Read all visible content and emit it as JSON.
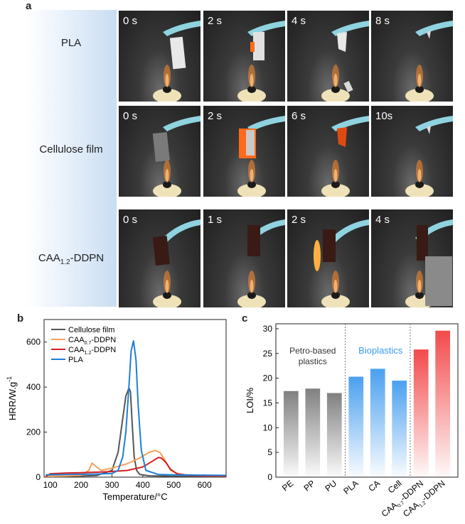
{
  "panel_a": {
    "letter": "a",
    "rows": [
      {
        "label": "PLA",
        "label_main": "PLA",
        "label_sub": "",
        "label_tail": "",
        "times": [
          "0 s",
          "2 s",
          "4 s",
          "8 s"
        ]
      },
      {
        "label": "Cellulose film",
        "label_main": "Cellulose film",
        "label_sub": "",
        "label_tail": "",
        "times": [
          "0 s",
          "2 s",
          "6 s",
          "10s"
        ]
      },
      {
        "label": "CAA1.2-DDPN",
        "label_main": "CAA",
        "label_sub": "1.2",
        "label_tail": "-DDPN",
        "times": [
          "0 s",
          "1 s",
          "2 s",
          "4 s"
        ]
      }
    ]
  },
  "panel_b_letter": "b",
  "panel_c_letter": "c",
  "chart_data": [
    {
      "type": "line",
      "panel": "b",
      "xlabel": "Temperature/°C",
      "ylabel": "HRR/W.g",
      "ylabel_sup": "-1",
      "xlim": [
        80,
        670
      ],
      "ylim": [
        0,
        700
      ],
      "xticks": [
        100,
        200,
        300,
        400,
        500,
        600
      ],
      "yticks": [
        0,
        200,
        400,
        600
      ],
      "legend": [
        {
          "main": "Cellulose film",
          "sub": "",
          "tail": ""
        },
        {
          "main": "CAA",
          "sub": "0.7",
          "tail": "-DDPN"
        },
        {
          "main": "CAA",
          "sub": "1.2",
          "tail": "-DDPN"
        },
        {
          "main": "PLA",
          "sub": "",
          "tail": ""
        }
      ],
      "series": [
        {
          "name": "Cellulose film",
          "color": "#555555",
          "x": [
            85,
            150,
            200,
            250,
            300,
            320,
            335,
            345,
            355,
            360,
            365,
            372,
            380,
            390,
            420,
            500,
            600,
            670
          ],
          "y": [
            3,
            4,
            5,
            7,
            30,
            110,
            260,
            360,
            395,
            380,
            250,
            90,
            30,
            12,
            6,
            4,
            3,
            3
          ]
        },
        {
          "name": "CAA0.7-DDPN",
          "color": "#f5a05a",
          "x": [
            85,
            150,
            200,
            225,
            235,
            242,
            250,
            265,
            300,
            350,
            390,
            420,
            440,
            455,
            470,
            490,
            520,
            600,
            670
          ],
          "y": [
            3,
            5,
            8,
            30,
            62,
            55,
            45,
            30,
            40,
            60,
            85,
            110,
            118,
            110,
            80,
            30,
            12,
            6,
            5
          ]
        },
        {
          "name": "CAA1.2-DDPN",
          "color": "#d42020",
          "x": [
            85,
            100,
            150,
            200,
            250,
            300,
            350,
            400,
            430,
            450,
            460,
            475,
            490,
            510,
            550,
            600,
            670
          ],
          "y": [
            2,
            15,
            18,
            20,
            22,
            25,
            30,
            45,
            70,
            87,
            85,
            65,
            35,
            15,
            8,
            6,
            5
          ]
        },
        {
          "name": "PLA",
          "color": "#1e7fd6",
          "x": [
            85,
            150,
            250,
            300,
            320,
            335,
            345,
            355,
            362,
            370,
            378,
            385,
            395,
            410,
            450,
            500,
            670
          ],
          "y": [
            10,
            12,
            14,
            16,
            30,
            90,
            200,
            400,
            560,
            605,
            520,
            320,
            120,
            30,
            12,
            10,
            8
          ]
        }
      ]
    },
    {
      "type": "bar",
      "panel": "c",
      "ylabel": "LOI/%",
      "ylim": [
        0,
        31
      ],
      "yticks": [
        0,
        5,
        10,
        15,
        20,
        25,
        30
      ],
      "categories": [
        "PE",
        "PP",
        "PU",
        "PLA",
        "CA",
        "Cell",
        "CAA0.7-DDPN",
        "CAA1.2-DDPN"
      ],
      "category_labels": [
        {
          "main": "PE",
          "sub": "",
          "tail": ""
        },
        {
          "main": "PP",
          "sub": "",
          "tail": ""
        },
        {
          "main": "PU",
          "sub": "",
          "tail": ""
        },
        {
          "main": "PLA",
          "sub": "",
          "tail": ""
        },
        {
          "main": "CA",
          "sub": "",
          "tail": ""
        },
        {
          "main": "Cell",
          "sub": "",
          "tail": ""
        },
        {
          "main": "CAA",
          "sub": "0.7",
          "tail": "-DDPN"
        },
        {
          "main": "CAA",
          "sub": "1.2",
          "tail": "-DDPN"
        }
      ],
      "values": [
        17.4,
        17.9,
        17.0,
        20.3,
        21.9,
        19.5,
        25.8,
        29.6
      ],
      "groups": [
        {
          "label_lines": [
            "Petro-based",
            "plastics"
          ],
          "members": [
            0,
            1,
            2
          ],
          "color": "#808080"
        },
        {
          "label_lines": [
            "Bioplastics"
          ],
          "members": [
            3,
            4,
            5
          ],
          "color": "#4aa0ef"
        },
        {
          "label_lines": [],
          "members": [
            6,
            7
          ],
          "color": "#f24a4a"
        }
      ]
    }
  ]
}
